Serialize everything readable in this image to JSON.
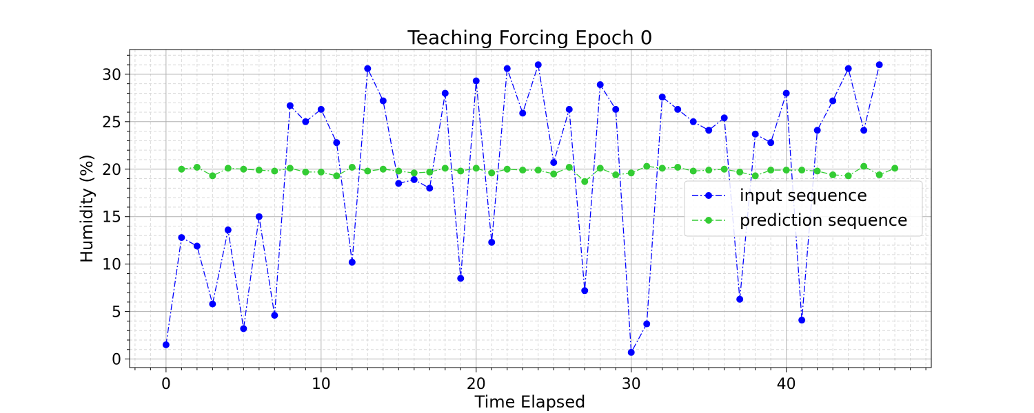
{
  "chart_data": {
    "type": "line",
    "title": "Teaching Forcing   Epoch 0",
    "xlabel": "Time Elapsed",
    "ylabel": "Humidity (%)",
    "xlim": [
      -2.35,
      49.35
    ],
    "ylim": [
      -0.9,
      32.6
    ],
    "x_ticks": [
      0,
      10,
      20,
      30,
      40
    ],
    "y_ticks": [
      0,
      5,
      10,
      15,
      20,
      25,
      30
    ],
    "x_minor_step": 1,
    "y_minor_step": 1,
    "grid": true,
    "legend_position": "center-right",
    "series": [
      {
        "name": "input sequence",
        "color": "#0000ff",
        "line_style": "dash-dot",
        "marker": "circle",
        "x": [
          0,
          1,
          2,
          3,
          4,
          5,
          6,
          7,
          8,
          9,
          10,
          11,
          12,
          13,
          14,
          15,
          16,
          17,
          18,
          19,
          20,
          21,
          22,
          23,
          24,
          25,
          26,
          27,
          28,
          29,
          30,
          31,
          32,
          33,
          34,
          35,
          36,
          37,
          38,
          39,
          40,
          41,
          42,
          43,
          44,
          45,
          46
        ],
        "values": [
          1.5,
          12.8,
          11.9,
          5.8,
          13.6,
          3.2,
          15.0,
          4.6,
          26.7,
          25.0,
          26.3,
          22.8,
          10.2,
          30.6,
          27.2,
          18.5,
          18.9,
          18.0,
          28.0,
          8.5,
          29.3,
          12.3,
          30.6,
          25.9,
          31.0,
          20.7,
          26.3,
          7.2,
          28.9,
          26.3,
          0.7,
          3.7,
          27.6,
          26.3,
          25.0,
          24.1,
          25.4,
          6.3,
          23.7,
          22.8,
          28.0,
          4.1,
          24.1,
          27.2,
          30.6,
          24.1,
          31.0
        ]
      },
      {
        "name": "prediction sequence",
        "color": "#33cc33",
        "line_style": "dash-dot",
        "marker": "circle",
        "x": [
          1,
          2,
          3,
          4,
          5,
          6,
          7,
          8,
          9,
          10,
          11,
          12,
          13,
          14,
          15,
          16,
          17,
          18,
          19,
          20,
          21,
          22,
          23,
          24,
          25,
          26,
          27,
          28,
          29,
          30,
          31,
          32,
          33,
          34,
          35,
          36,
          37,
          38,
          39,
          40,
          41,
          42,
          43,
          44,
          45,
          46,
          47
        ],
        "values": [
          20.0,
          20.2,
          19.3,
          20.1,
          20.0,
          19.9,
          19.8,
          20.1,
          19.7,
          19.7,
          19.3,
          20.2,
          19.8,
          20.0,
          19.8,
          19.6,
          19.7,
          20.1,
          19.8,
          20.1,
          19.6,
          20.0,
          19.9,
          19.9,
          19.5,
          20.2,
          18.7,
          20.1,
          19.4,
          19.6,
          20.3,
          20.1,
          20.2,
          19.8,
          19.9,
          20.0,
          19.7,
          19.3,
          19.9,
          19.9,
          19.9,
          19.8,
          19.4,
          19.3,
          20.3,
          19.4,
          20.1
        ]
      }
    ]
  }
}
